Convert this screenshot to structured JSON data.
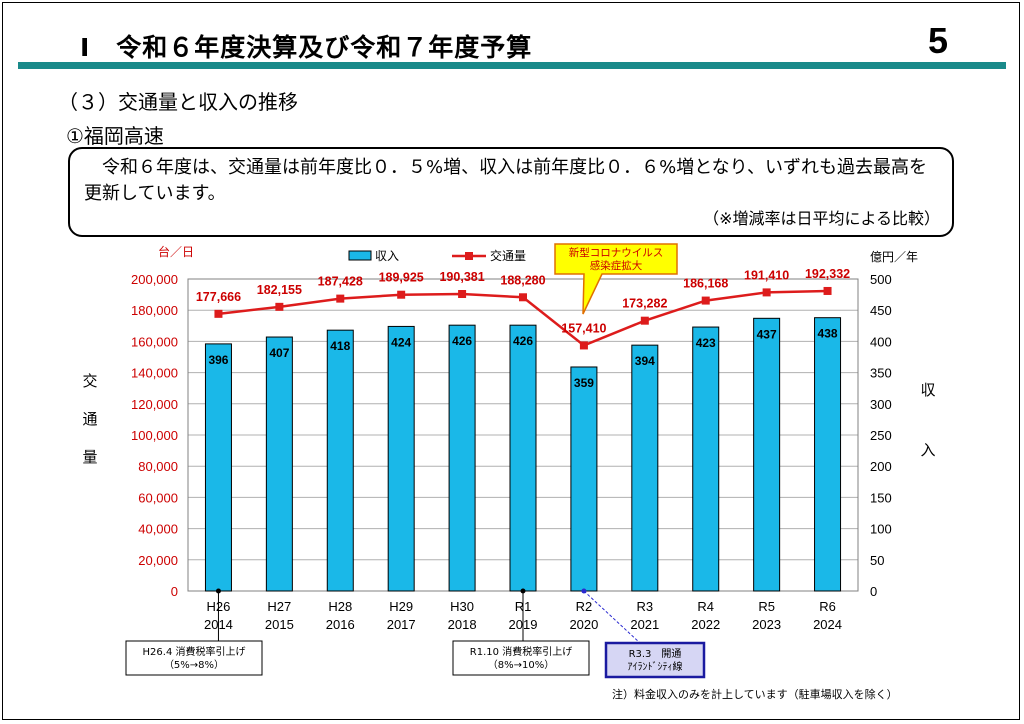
{
  "header": {
    "title": "Ⅰ　令和６年度決算及び令和７年度予算",
    "page_number": "5",
    "rule_color": "#1a8a8a"
  },
  "section_title": "（３）交通量と収入の推移",
  "subsection_title": "①福岡高速",
  "summary": {
    "text": "令和６年度は、交通量は前年度比０．５%増、収入は前年度比０．６%増となり、いずれも過去最高を更新しています。",
    "note": "（※増減率は日平均による比較）"
  },
  "chart_data": {
    "type": "bar",
    "categories": [
      "H26\n2014",
      "H27\n2015",
      "H28\n2016",
      "H29\n2017",
      "H30\n2018",
      "R1\n2019",
      "R2\n2020",
      "R3\n2021",
      "R4\n2022",
      "R5\n2023",
      "R6\n2024"
    ],
    "category_era": [
      "H26",
      "H27",
      "H28",
      "H29",
      "H30",
      "R1",
      "R2",
      "R3",
      "R4",
      "R5",
      "R6"
    ],
    "category_year": [
      "2014",
      "2015",
      "2016",
      "2017",
      "2018",
      "2019",
      "2020",
      "2021",
      "2022",
      "2023",
      "2024"
    ],
    "series": [
      {
        "name": "収入",
        "type": "bar",
        "axis": "right",
        "color": "#1ab8e8",
        "values": [
          396,
          407,
          418,
          424,
          426,
          426,
          359,
          394,
          423,
          437,
          438
        ]
      },
      {
        "name": "交通量",
        "type": "line",
        "axis": "left",
        "color": "#dd1c1c",
        "values": [
          177666,
          182155,
          187428,
          189925,
          190381,
          188280,
          157410,
          173282,
          186168,
          191410,
          192332
        ]
      }
    ],
    "left_axis": {
      "unit": "台／日",
      "label": "交\n通\n量",
      "ylim": [
        0,
        200000
      ],
      "tick_step": 20000,
      "color": "#cc0000"
    },
    "right_axis": {
      "unit": "億円／年",
      "label": "収\n入",
      "ylim": [
        0,
        500
      ],
      "tick_step": 50
    },
    "grid": true,
    "legend_position": "top",
    "callout": {
      "text": "新型コロナウイルス\n感染症拡大",
      "category": "R2",
      "fill": "#ffff00",
      "border": "#e07000",
      "text_color": "#cc0000"
    },
    "annotations": [
      {
        "category": "H26",
        "text": "H26.4 消費税率引上げ\n（5%→8%）",
        "style": "plain"
      },
      {
        "category": "R1",
        "text": "R1.10 消費税率引上げ\n（8%→10%）",
        "style": "plain"
      },
      {
        "category": "R2",
        "text": "R3.3　開通\nｱｲﾗﾝﾄﾞｼﾃｨ線",
        "style": "highlight"
      }
    ]
  },
  "footnote": "注）料金収入のみを計上しています（駐車場収入を除く）"
}
